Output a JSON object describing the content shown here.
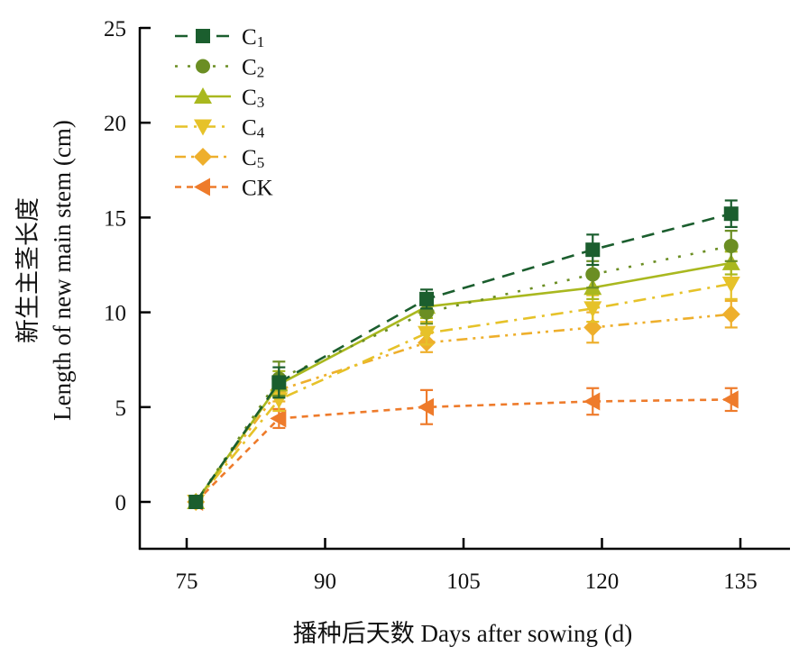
{
  "chart_data": {
    "type": "line",
    "title": "",
    "xlabel": "播种后天数 Days after sowing (d)",
    "ylabel_cn": "新生主茎长度",
    "ylabel": "Length of new main stem (cm)",
    "xlim": [
      70,
      141
    ],
    "ylim": [
      -2.5,
      25
    ],
    "xticks": [
      75,
      90,
      105,
      120,
      135
    ],
    "yticks": [
      0,
      5,
      10,
      15,
      20,
      25
    ],
    "grid": false,
    "legend_position": "top-left",
    "x": [
      76,
      85,
      101,
      119,
      134
    ],
    "series": [
      {
        "name": "C1",
        "base": "C",
        "sub": "1",
        "color": "#1b5e2e",
        "marker": "square",
        "dash": "long-dash",
        "values": [
          0,
          6.3,
          10.7,
          13.3,
          15.2
        ],
        "errors": [
          0.1,
          0.8,
          0.5,
          0.8,
          0.7
        ]
      },
      {
        "name": "C2",
        "base": "C",
        "sub": "2",
        "color": "#6b8e23",
        "marker": "circle",
        "dash": "dotted",
        "values": [
          0,
          6.5,
          10.0,
          12.0,
          13.5
        ],
        "errors": [
          0.1,
          0.9,
          0.6,
          0.7,
          0.8
        ]
      },
      {
        "name": "C3",
        "base": "C",
        "sub": "3",
        "color": "#a9b81f",
        "marker": "triangle-up",
        "dash": "solid",
        "values": [
          0,
          6.2,
          10.3,
          11.3,
          12.6
        ],
        "errors": [
          0.1,
          0.7,
          0.6,
          0.6,
          0.6
        ]
      },
      {
        "name": "C4",
        "base": "C",
        "sub": "4",
        "color": "#e6c229",
        "marker": "triangle-down",
        "dash": "dash-dot",
        "values": [
          0,
          5.4,
          8.9,
          10.2,
          11.5
        ],
        "errors": [
          0.1,
          0.6,
          0.6,
          0.7,
          0.8
        ]
      },
      {
        "name": "C5",
        "base": "C",
        "sub": "5",
        "color": "#eeaf2c",
        "marker": "diamond",
        "dash": "dash-dot-dot",
        "values": [
          0,
          5.9,
          8.4,
          9.2,
          9.9
        ],
        "errors": [
          0.1,
          0.6,
          0.5,
          0.8,
          0.7
        ]
      },
      {
        "name": "CK",
        "base": "CK",
        "sub": "",
        "color": "#ee7b2b",
        "marker": "triangle-left",
        "dash": "short-dash",
        "values": [
          0,
          4.4,
          5.0,
          5.3,
          5.4
        ],
        "errors": [
          0.1,
          0.5,
          0.9,
          0.7,
          0.6
        ]
      }
    ]
  }
}
